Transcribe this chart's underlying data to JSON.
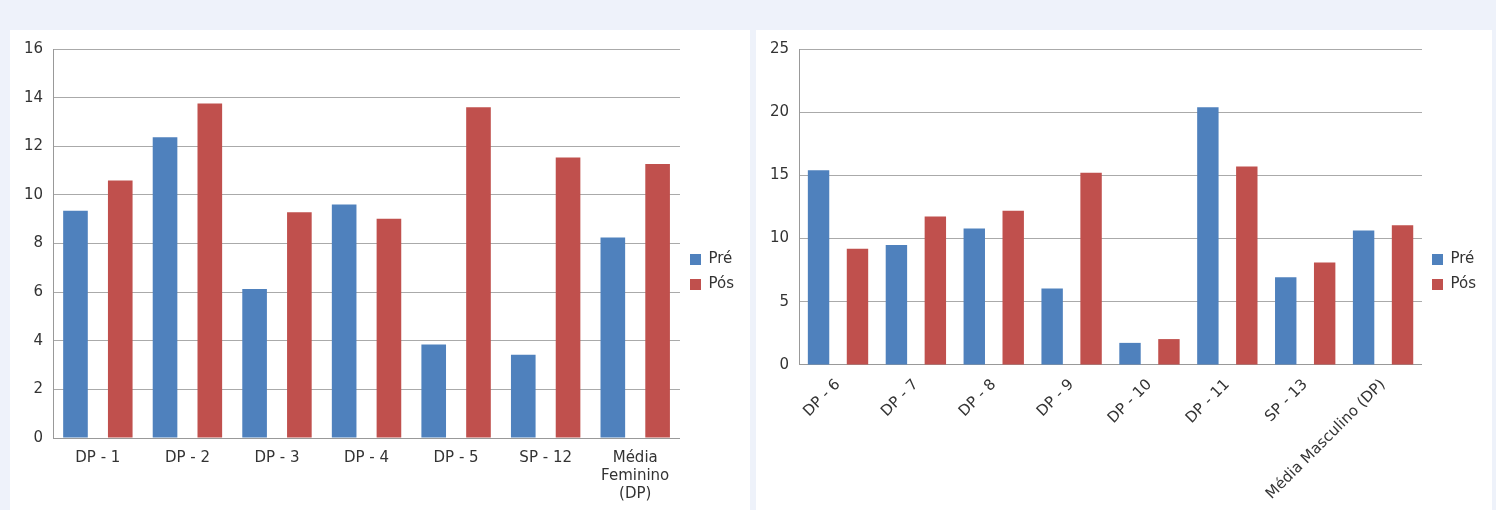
{
  "chart_data": [
    {
      "type": "bar",
      "categories": [
        "DP - 1",
        "DP - 2",
        "DP - 3",
        "DP - 4",
        "DP - 5",
        "SP - 12",
        "Média Feminino (DP)"
      ],
      "series": [
        {
          "name": "Pré",
          "color": "#4f81bd",
          "values": [
            9.35,
            12.37,
            6.13,
            9.6,
            3.85,
            3.42,
            8.25
          ]
        },
        {
          "name": "Pós",
          "color": "#c0504d",
          "values": [
            10.59,
            13.76,
            9.29,
            9.02,
            13.6,
            11.54,
            11.27
          ]
        }
      ],
      "ylim": [
        0,
        16
      ],
      "yticks": [
        0,
        2,
        4,
        6,
        8,
        10,
        12,
        14,
        16
      ],
      "grid": "y",
      "legend": "right"
    },
    {
      "type": "bar",
      "categories": [
        "DP - 6",
        "DP - 7",
        "DP - 8",
        "DP - 9",
        "DP - 10",
        "DP - 11",
        "SP - 13",
        "Média Masculino (DP)"
      ],
      "series": [
        {
          "name": "Pré",
          "color": "#4f81bd",
          "values": [
            15.4,
            9.5,
            10.8,
            6.05,
            1.75,
            20.4,
            6.95,
            10.65
          ]
        },
        {
          "name": "Pós",
          "color": "#c0504d",
          "values": [
            9.2,
            11.75,
            12.2,
            15.2,
            2.05,
            15.7,
            8.1,
            11.05
          ]
        }
      ],
      "ylim": [
        0,
        25
      ],
      "yticks": [
        0,
        5,
        10,
        15,
        20,
        25
      ],
      "grid": "y",
      "legend": "right"
    }
  ]
}
